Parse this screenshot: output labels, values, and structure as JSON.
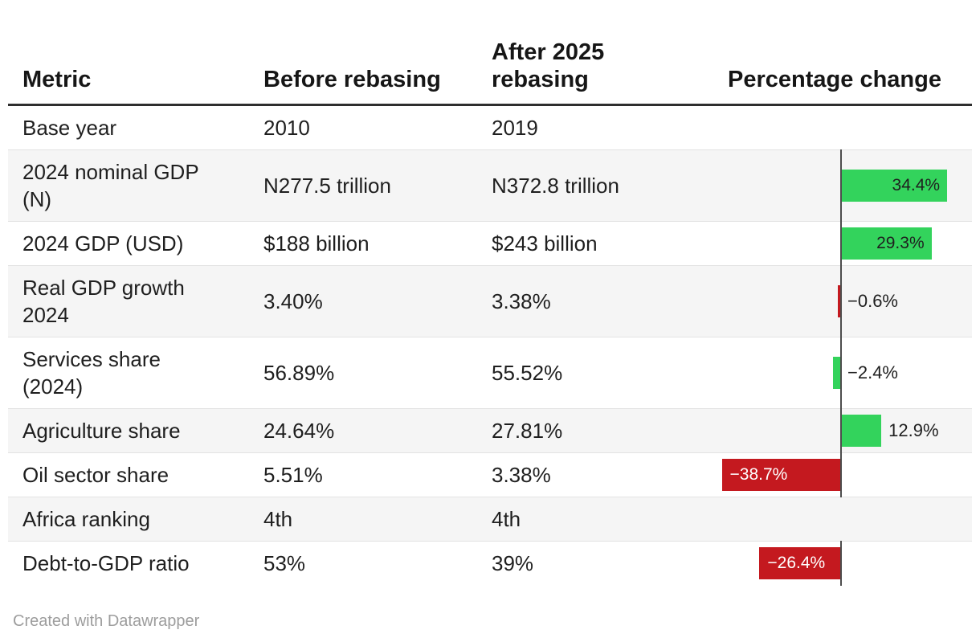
{
  "colors": {
    "green": "#33d35c",
    "red": "#c4191f",
    "axis": "#4d4d4d"
  },
  "table": {
    "columns": [
      {
        "label": "Metric"
      },
      {
        "label": "Before rebasing"
      },
      {
        "label": "After 2025\nrebasing"
      },
      {
        "label": "Percentage change"
      }
    ],
    "rows": [
      {
        "metric": "Base year",
        "before": "2010",
        "after": "2019",
        "bar": null
      },
      {
        "metric": "2024 nominal GDP\n(N)",
        "before": "N277.5 trillion",
        "after": "N372.8 trillion",
        "bar": {
          "value": 34.4,
          "display": "34.4%",
          "color": "green",
          "label": "inside"
        }
      },
      {
        "metric": "2024 GDP (USD)",
        "before": "$188 billion",
        "after": "$243 billion",
        "bar": {
          "value": 29.3,
          "display": "29.3%",
          "color": "green",
          "label": "inside"
        }
      },
      {
        "metric": "Real GDP growth\n2024",
        "before": "3.40%",
        "after": "3.38%",
        "bar": {
          "value": -0.6,
          "display": "−0.6%",
          "color": "red",
          "label": "outside"
        }
      },
      {
        "metric": "Services share\n(2024)",
        "before": "56.89%",
        "after": "55.52%",
        "bar": {
          "value": -2.4,
          "display": "−2.4%",
          "color": "green",
          "label": "outside"
        }
      },
      {
        "metric": "Agriculture share",
        "before": "24.64%",
        "after": "27.81%",
        "bar": {
          "value": 12.9,
          "display": "12.9%",
          "color": "green",
          "label": "outside"
        }
      },
      {
        "metric": "Oil sector share",
        "before": "5.51%",
        "after": "3.38%",
        "bar": {
          "value": -38.7,
          "display": "−38.7%",
          "color": "red",
          "label": "inside"
        }
      },
      {
        "metric": "Africa ranking",
        "before": "4th",
        "after": "4th",
        "bar": null
      },
      {
        "metric": "Debt-to-GDP ratio",
        "before": "53%",
        "after": "39%",
        "bar": {
          "value": -26.4,
          "display": "−26.4%",
          "color": "red",
          "label": "inside"
        }
      }
    ]
  },
  "footer": {
    "credit": "Created with Datawrapper"
  },
  "chart_data": {
    "type": "table",
    "title": "",
    "columns": [
      "Metric",
      "Before rebasing",
      "After 2025 rebasing",
      "Percentage change"
    ],
    "rows": [
      [
        "Base year",
        "2010",
        "2019",
        null
      ],
      [
        "2024 nominal GDP (N)",
        "N277.5 trillion",
        "N372.8 trillion",
        34.4
      ],
      [
        "2024 GDP (USD)",
        "$188 billion",
        "$243 billion",
        29.3
      ],
      [
        "Real GDP growth 2024",
        "3.40%",
        "3.38%",
        -0.6
      ],
      [
        "Services share (2024)",
        "56.89%",
        "55.52%",
        -2.4
      ],
      [
        "Agriculture share",
        "24.64%",
        "27.81%",
        12.9
      ],
      [
        "Oil sector share",
        "5.51%",
        "3.38%",
        -38.7
      ],
      [
        "Africa ranking",
        "4th",
        "4th",
        null
      ],
      [
        "Debt-to-GDP ratio",
        "53%",
        "39%",
        -26.4
      ]
    ],
    "embedded_chart": {
      "type": "bar",
      "orientation": "horizontal",
      "series_name": "Percentage change",
      "categories": [
        "2024 nominal GDP (N)",
        "2024 GDP (USD)",
        "Real GDP growth 2024",
        "Services share (2024)",
        "Agriculture share",
        "Oil sector share",
        "Debt-to-GDP ratio"
      ],
      "values": [
        34.4,
        29.3,
        -0.6,
        -2.4,
        12.9,
        -38.7,
        -26.4
      ],
      "bar_colors": [
        "#33d35c",
        "#33d35c",
        "#c4191f",
        "#33d35c",
        "#33d35c",
        "#c4191f",
        "#c4191f"
      ],
      "zero_axis": true,
      "grid": false,
      "legend": false
    }
  }
}
